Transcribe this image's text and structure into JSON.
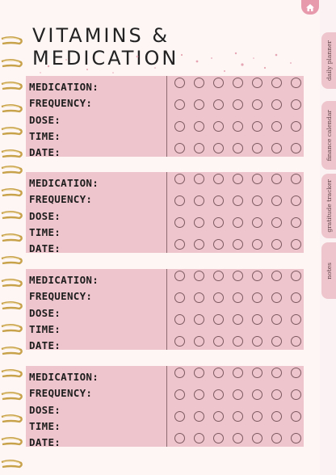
{
  "title": "VITAMINS & MEDICATION",
  "field_labels": {
    "medication": "MEDICATION:",
    "frequency": "FREQUENCY:",
    "dose": "DOSE:",
    "time": "TIME:",
    "date": "DATE:"
  },
  "block_count": 4,
  "checkbox_rows": 4,
  "checkbox_columns": 7,
  "tabs": [
    "daily planner",
    "finance calendar",
    "gratitude tracker",
    "notes"
  ],
  "colors": {
    "background": "#fdf6f5",
    "block_fill": "#efc5cd",
    "tab_fill": "#efc5cd",
    "home_tab": "#e79aac",
    "ring_gold": "#c8a24a"
  },
  "icons": {
    "home": "home-icon",
    "rings": "spiral-binding"
  }
}
